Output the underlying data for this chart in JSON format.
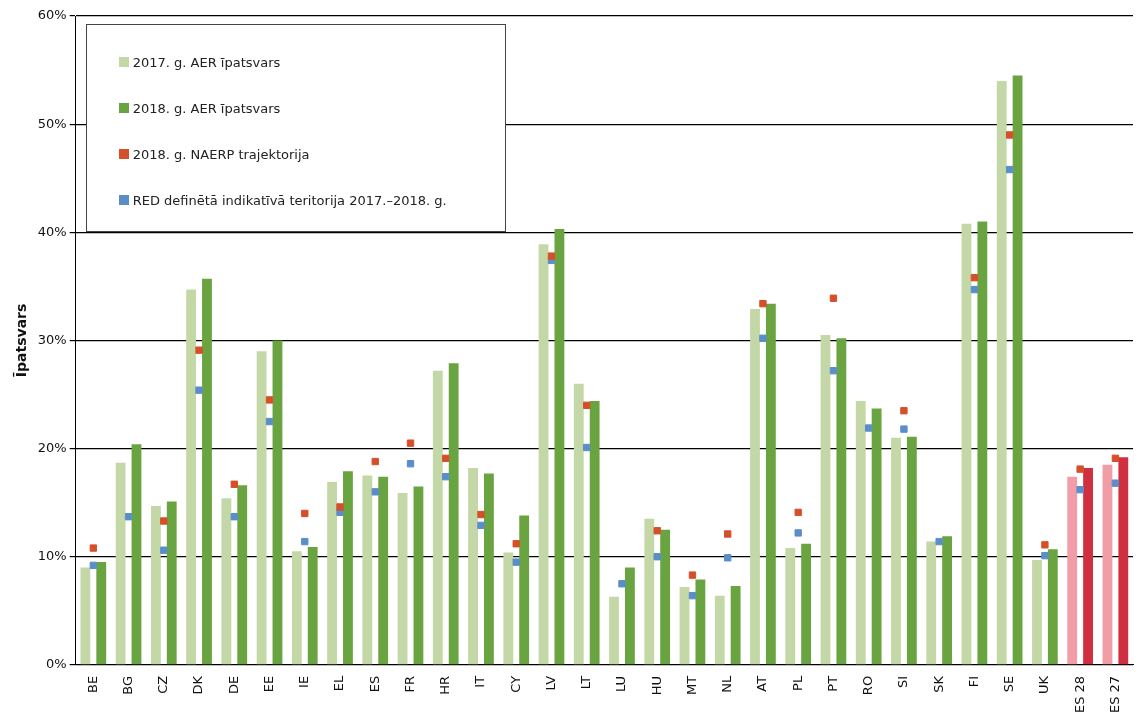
{
  "chart_data": {
    "type": "bar",
    "ylabel": "Īpatsvars",
    "categories": [
      "BE",
      "BG",
      "CZ",
      "DK",
      "DE",
      "EE",
      "IE",
      "EL",
      "ES",
      "FR",
      "HR",
      "IT",
      "CY",
      "LV",
      "LT",
      "LU",
      "HU",
      "MT",
      "NL",
      "AT",
      "PL",
      "PT",
      "RO",
      "SI",
      "SK",
      "FI",
      "SE",
      "UK",
      "ES 28",
      "ES 27"
    ],
    "series": [
      {
        "name": "2017. g. AER īpatsvars",
        "color": "#c3d8a6",
        "colors": [
          "#c3d8a6",
          "#c3d8a6",
          "#c3d8a6",
          "#c3d8a6",
          "#c3d8a6",
          "#c3d8a6",
          "#c3d8a6",
          "#c3d8a6",
          "#c3d8a6",
          "#c3d8a6",
          "#c3d8a6",
          "#c3d8a6",
          "#c3d8a6",
          "#c3d8a6",
          "#c3d8a6",
          "#c3d8a6",
          "#c3d8a6",
          "#c3d8a6",
          "#c3d8a6",
          "#c3d8a6",
          "#c3d8a6",
          "#c3d8a6",
          "#c3d8a6",
          "#c3d8a6",
          "#c3d8a6",
          "#c3d8a6",
          "#c3d8a6",
          "#c3d8a6",
          "#f19ca6",
          "#f19ca6"
        ],
        "values": [
          9.0,
          18.7,
          14.7,
          34.7,
          15.4,
          29.0,
          10.5,
          16.9,
          17.5,
          15.9,
          27.2,
          18.2,
          10.4,
          38.9,
          26.0,
          6.3,
          13.5,
          7.2,
          6.4,
          32.9,
          10.8,
          30.5,
          24.4,
          21.0,
          11.4,
          40.8,
          54.0,
          9.7,
          17.4,
          18.5
        ]
      },
      {
        "name": "2018. g. AER īpatsvars",
        "color": "#6aa440",
        "colors": [
          "#6aa440",
          "#6aa440",
          "#6aa440",
          "#6aa440",
          "#6aa440",
          "#6aa440",
          "#6aa440",
          "#6aa440",
          "#6aa440",
          "#6aa440",
          "#6aa440",
          "#6aa440",
          "#6aa440",
          "#6aa440",
          "#6aa440",
          "#6aa440",
          "#6aa440",
          "#6aa440",
          "#6aa440",
          "#6aa440",
          "#6aa440",
          "#6aa440",
          "#6aa440",
          "#6aa440",
          "#6aa440",
          "#6aa440",
          "#6aa440",
          "#6aa440",
          "#cf2f3f",
          "#cf2f3f"
        ],
        "values": [
          9.5,
          20.4,
          15.1,
          35.7,
          16.6,
          30.0,
          10.9,
          17.9,
          17.4,
          16.5,
          27.9,
          17.7,
          13.8,
          40.3,
          24.4,
          9.0,
          12.5,
          7.9,
          7.3,
          33.4,
          11.2,
          30.2,
          23.7,
          21.1,
          11.9,
          41.0,
          54.5,
          10.7,
          18.2,
          19.2
        ]
      },
      {
        "name": "2018. g. NAERP trajektorija",
        "type": "scatter",
        "marker": "square",
        "color": "#d5502a",
        "values": [
          10.8,
          null,
          13.3,
          29.1,
          16.7,
          24.5,
          14.0,
          14.6,
          18.8,
          20.5,
          19.1,
          13.9,
          11.2,
          37.8,
          24.0,
          null,
          12.4,
          8.3,
          12.1,
          33.4,
          14.1,
          33.9,
          null,
          23.5,
          null,
          35.8,
          49.0,
          11.1,
          18.1,
          19.1
        ]
      },
      {
        "name": "RED definētā indikatīvā teritorija 2017.–2018. g.",
        "type": "scatter",
        "marker": "square",
        "color": "#5b8ec8",
        "values": [
          9.2,
          13.7,
          10.6,
          25.4,
          13.7,
          22.5,
          11.4,
          14.1,
          16.0,
          18.6,
          17.4,
          12.9,
          9.5,
          37.4,
          20.1,
          7.5,
          10.0,
          6.4,
          9.9,
          30.2,
          12.2,
          27.2,
          21.9,
          21.8,
          11.4,
          34.7,
          45.8,
          10.1,
          16.2,
          16.8
        ]
      }
    ],
    "ylim": [
      0,
      60
    ],
    "yticks": [
      {
        "value": 0,
        "label": "0%"
      },
      {
        "value": 10,
        "label": "10%"
      },
      {
        "value": 20,
        "label": "20%"
      },
      {
        "value": 30,
        "label": "30%"
      },
      {
        "value": 40,
        "label": "40%"
      },
      {
        "value": 50,
        "label": "50%"
      },
      {
        "value": 60,
        "label": "60%"
      }
    ],
    "grid": "y",
    "legend": "top left"
  }
}
